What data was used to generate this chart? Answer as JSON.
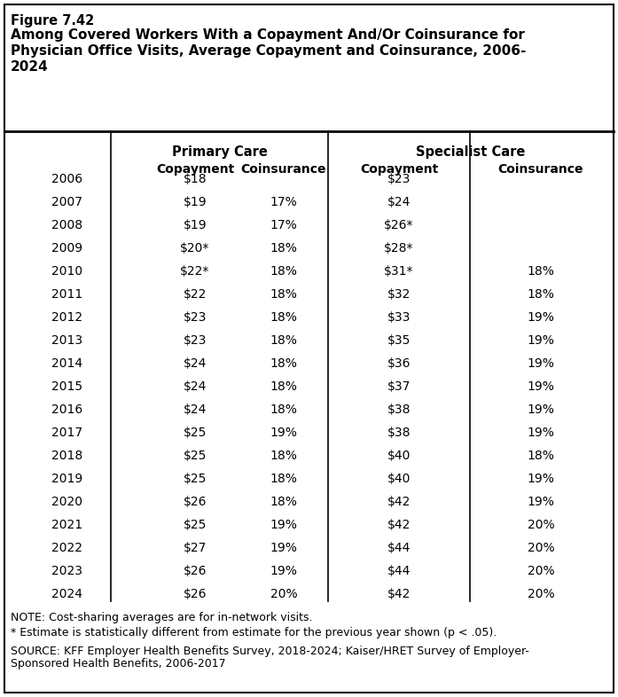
{
  "figure_label": "Figure 7.42",
  "title_line1": "Among Covered Workers With a Copayment And/Or Coinsurance for",
  "title_line2": "Physician Office Visits, Average Copayment and Coinsurance, 2006-",
  "title_line3": "2024",
  "years": [
    "2006",
    "2007",
    "2008",
    "2009",
    "2010",
    "2011",
    "2012",
    "2013",
    "2014",
    "2015",
    "2016",
    "2017",
    "2018",
    "2019",
    "2020",
    "2021",
    "2022",
    "2023",
    "2024"
  ],
  "primary_copay": [
    "$18",
    "$19",
    "$19",
    "$20*",
    "$22*",
    "$22",
    "$23",
    "$23",
    "$24",
    "$24",
    "$24",
    "$25",
    "$25",
    "$25",
    "$26",
    "$25",
    "$27",
    "$26",
    "$26"
  ],
  "primary_coins": [
    "",
    "17%",
    "17%",
    "18%",
    "18%",
    "18%",
    "18%",
    "18%",
    "18%",
    "18%",
    "18%",
    "19%",
    "18%",
    "18%",
    "18%",
    "19%",
    "19%",
    "19%",
    "20%"
  ],
  "specialist_copay": [
    "$23",
    "$24",
    "$26*",
    "$28*",
    "$31*",
    "$32",
    "$33",
    "$35",
    "$36",
    "$37",
    "$38",
    "$38",
    "$40",
    "$40",
    "$42",
    "$42",
    "$44",
    "$44",
    "$42"
  ],
  "specialist_coins": [
    "",
    "",
    "",
    "",
    "18%",
    "18%",
    "19%",
    "19%",
    "19%",
    "19%",
    "19%",
    "19%",
    "18%",
    "19%",
    "19%",
    "20%",
    "20%",
    "20%",
    "20%"
  ],
  "note1": "NOTE: Cost-sharing averages are for in-network visits.",
  "note2": "* Estimate is statistically different from estimate for the previous year shown (p < .05).",
  "source_line1": "SOURCE: KFF Employer Health Benefits Survey, 2018-2024; Kaiser/HRET Survey of Employer-",
  "source_line2": "Sponsored Health Benefits, 2006-2017",
  "header_primary": "Primary Care",
  "header_specialist": "Specialist Care",
  "col_copay": "Copayment",
  "col_coins": "Coinsurance",
  "bg_color": "#ffffff",
  "border_color": "#000000",
  "text_color": "#000000",
  "outer_border_lw": 1.5,
  "divider_lw": 2.0,
  "vline_lw": 1.2
}
